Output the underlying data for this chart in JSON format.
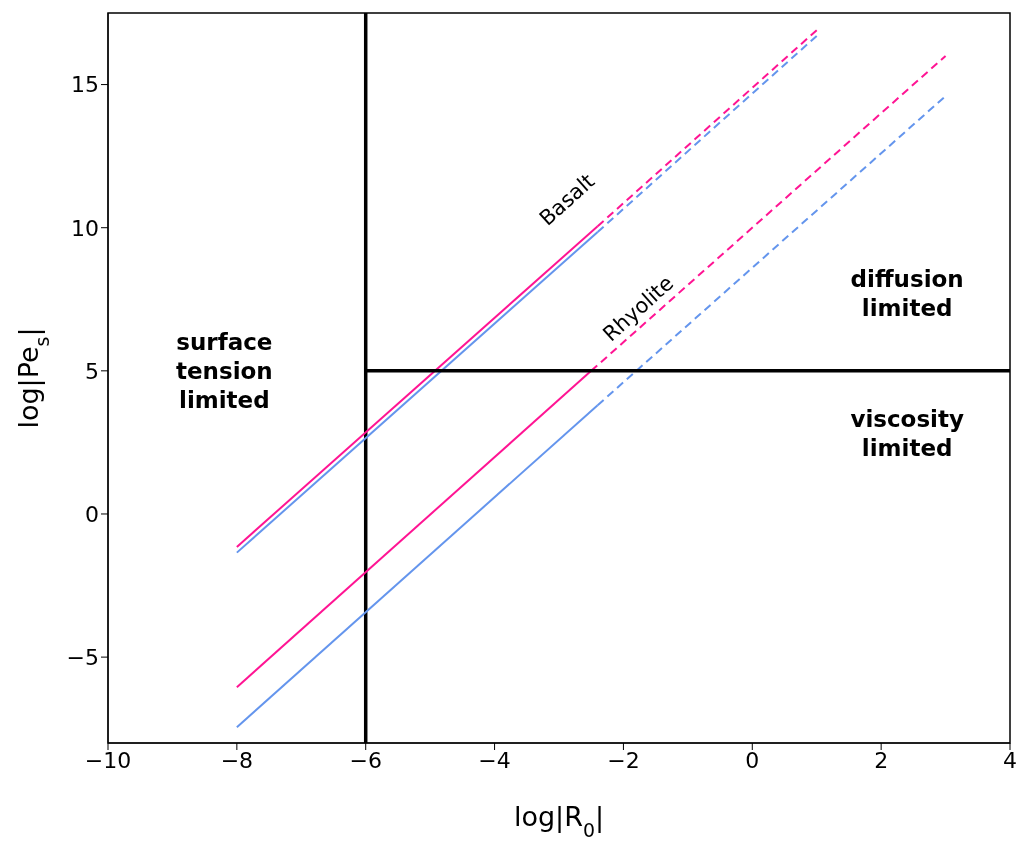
{
  "chart_data": {
    "type": "line",
    "xlabel": "log|R$_{0}$|",
    "ylabel": "log|Pe$_{s}$|",
    "xlim": [
      -10,
      4
    ],
    "ylim": [
      -8,
      17.5
    ],
    "xticks": [
      {
        "value": -10,
        "label": "−10"
      },
      {
        "value": -8,
        "label": "−8"
      },
      {
        "value": -6,
        "label": "−6"
      },
      {
        "value": -4,
        "label": "−4"
      },
      {
        "value": -2,
        "label": "−2"
      },
      0,
      2,
      4
    ],
    "yticks": [
      {
        "value": -5,
        "label": "−5"
      },
      0,
      5,
      10,
      15
    ],
    "marker": "none",
    "series": [
      {
        "color": "#ff1493",
        "line_style": "solid",
        "x": [
          -8,
          -2.4
        ],
        "values": [
          -1.15,
          10.05
        ]
      },
      {
        "color": "#ff1493",
        "line_style": "dashed",
        "x": [
          -2.4,
          1
        ],
        "values": [
          10.05,
          16.9
        ]
      },
      {
        "color": "#6495ed",
        "line_style": "solid",
        "x": [
          -8,
          -2.4
        ],
        "values": [
          -1.35,
          9.85
        ]
      },
      {
        "color": "#6495ed",
        "line_style": "dashed",
        "x": [
          -2.4,
          1
        ],
        "values": [
          9.85,
          16.7
        ]
      },
      {
        "color": "#ff1493",
        "line_style": "solid",
        "x": [
          -8,
          -2.5
        ],
        "values": [
          -6.05,
          5.0
        ]
      },
      {
        "color": "#ff1493",
        "line_style": "dashed",
        "x": [
          -2.5,
          3
        ],
        "values": [
          5.0,
          16.0
        ]
      },
      {
        "color": "#6495ed",
        "line_style": "solid",
        "x": [
          -8,
          -2.4
        ],
        "values": [
          -7.45,
          3.8
        ]
      },
      {
        "color": "#6495ed",
        "line_style": "dashed",
        "x": [
          -2.4,
          3
        ],
        "values": [
          3.8,
          14.6
        ]
      },
      {
        "color": "#000000",
        "line_style": "solid",
        "x": [
          -6,
          4
        ],
        "values": [
          5,
          5
        ]
      }
    ],
    "ref_lines": [
      {
        "axis": "x",
        "value": -6,
        "color": "#000000"
      }
    ],
    "annotations": [
      "Basalt",
      "Rhyolite",
      "surface\ntension\nlimited",
      "diffusion\nlimited",
      "viscosity\nlimited"
    ]
  }
}
